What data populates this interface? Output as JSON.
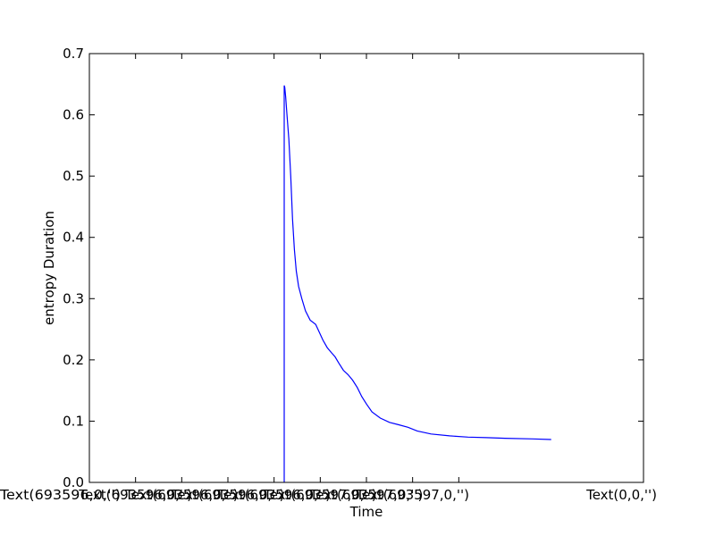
{
  "chart_data": {
    "type": "line",
    "xlabel": "Time",
    "ylabel": "entropy Duration",
    "ylim": [
      0,
      0.7
    ],
    "y_ticks": [
      0.0,
      0.1,
      0.2,
      0.3,
      0.4,
      0.5,
      0.6,
      0.7
    ],
    "x_tick_labels": [
      "Text(693596,0,'')",
      "Text(693596,0,'')",
      "Text(693596,0,'')",
      "Text(693596,0,'')",
      "Text(693596,0,'')",
      "Text(693597,0,'')",
      "Text(693597,0,'')",
      "Text(693597,0,'')",
      "Text(0,0,'')"
    ],
    "grid": false,
    "line_color": "#0000ff",
    "series": [
      {
        "x": [
          4.22,
          4.22,
          4.23,
          4.25,
          4.28,
          4.32,
          4.36,
          4.4,
          4.44,
          4.48,
          4.53,
          4.6,
          4.68,
          4.78,
          4.9,
          4.98,
          5.06,
          5.15,
          5.24,
          5.32,
          5.4,
          5.5,
          5.6,
          5.7,
          5.8,
          5.9,
          6.0,
          6.12,
          6.3,
          6.5,
          6.7,
          6.9,
          7.1,
          7.4,
          7.8,
          8.2,
          8.6,
          9.0,
          9.6,
          10.0
        ],
        "values": [
          0.0,
          0.648,
          0.645,
          0.63,
          0.6,
          0.56,
          0.5,
          0.43,
          0.38,
          0.345,
          0.32,
          0.3,
          0.28,
          0.265,
          0.258,
          0.245,
          0.232,
          0.22,
          0.212,
          0.205,
          0.195,
          0.183,
          0.176,
          0.167,
          0.155,
          0.14,
          0.128,
          0.115,
          0.105,
          0.098,
          0.094,
          0.09,
          0.084,
          0.079,
          0.076,
          0.074,
          0.073,
          0.072,
          0.071,
          0.07
        ]
      }
    ]
  }
}
